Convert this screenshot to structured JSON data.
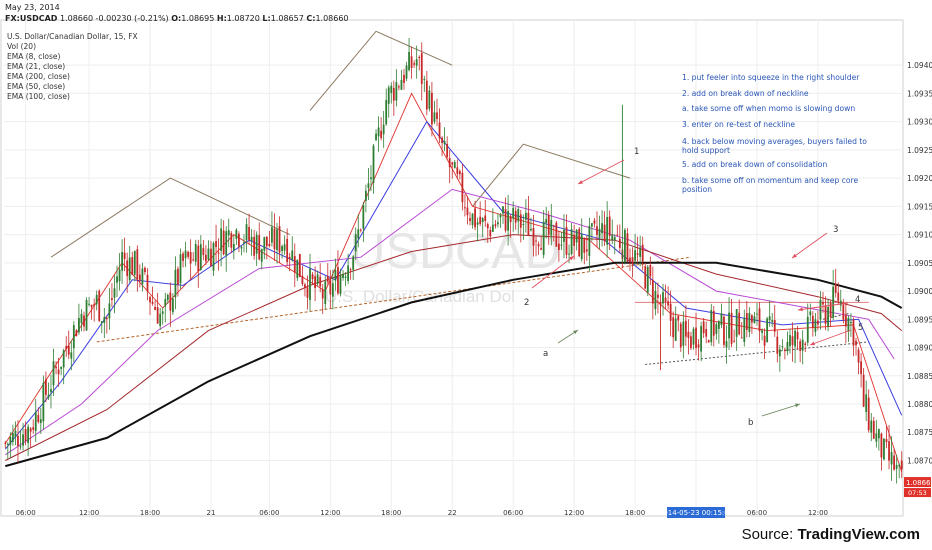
{
  "header": {
    "date": "May 23, 2014",
    "symbol": "FX:USDCAD",
    "last": "1.08660",
    "change": "-0.00230 (-0.21%)",
    "open_label": "O:",
    "open": "1.08695",
    "high_label": "H:",
    "high": "1.08720",
    "low_label": "L:",
    "low": "1.08657",
    "close_label": "C:",
    "close": "1.08660"
  },
  "legend": [
    "U.S. Dollar/Canadian Dollar, 15, FX",
    "Vol (20)",
    "EMA (8, close)",
    "EMA (21, close)",
    "EMA (200, close)",
    "EMA (50, close)",
    "EMA (100, close)"
  ],
  "watermark": {
    "symbol": "USDCAD",
    "name": "U.S. Dollar/Canadian Dol"
  },
  "notes": [
    "1. put feeler into squeeze in the right shoulder",
    "2. add on break down of neckline",
    "a. take some off when momo is slowing down",
    "3. enter on re-test of neckline",
    "4. back below moving averages, buyers failed to hold support",
    "5. add on break down of consolidation",
    "b. take some off on momentum and keep core position"
  ],
  "annotations": [
    "1",
    "2",
    "a",
    "3",
    "4",
    "5",
    "b"
  ],
  "source": {
    "prefix": "Source: ",
    "name": "TradingView.com"
  },
  "colors": {
    "up": "#2e7d32",
    "down": "#c62828",
    "ema8": "#e0312b",
    "ema21": "#3b3fe0",
    "ema50": "#b94ad4",
    "ema100": "#a3282c",
    "ema200": "#111111",
    "shoulder": "#8c7a60",
    "neckline": "#b5652a",
    "annot": "#e05060",
    "annot_dark": "#6e8a60",
    "note": "#2a56b5"
  },
  "chart_data": {
    "type": "candlestick",
    "title": "U.S. Dollar/Canadian Dollar, 15, FX",
    "interval": "15",
    "ylim": [
      1.0863,
      1.0948
    ],
    "y_ticks": [
      "1.09400",
      "1.09350",
      "1.09300",
      "1.09250",
      "1.09200",
      "1.09150",
      "1.09100",
      "1.09050",
      "1.09000",
      "1.08950",
      "1.08900",
      "1.08850",
      "1.08800",
      "1.08750",
      "1.08700"
    ],
    "x_ticks": [
      "06:00",
      "12:00",
      "18:00",
      "21",
      "06:00",
      "12:00",
      "18:00",
      "22",
      "06:00",
      "12:00",
      "18:00",
      "2014-05-23 00:15:00",
      "06:00",
      "12:00"
    ],
    "current_price": "1.08660",
    "countdown": "07:53",
    "price_path": [
      [
        0,
        1.0873
      ],
      [
        10,
        1.0876
      ],
      [
        22,
        1.0888
      ],
      [
        30,
        1.0896
      ],
      [
        36,
        1.0898
      ],
      [
        40,
        1.0895
      ],
      [
        46,
        1.0906
      ],
      [
        52,
        1.0904
      ],
      [
        58,
        1.0898
      ],
      [
        62,
        1.0895
      ],
      [
        70,
        1.0905
      ],
      [
        80,
        1.0907
      ],
      [
        90,
        1.0911
      ],
      [
        100,
        1.0908
      ],
      [
        110,
        1.0909
      ],
      [
        118,
        1.0902
      ],
      [
        126,
        1.0899
      ],
      [
        132,
        1.0903
      ],
      [
        138,
        1.0908
      ],
      [
        146,
        1.0925
      ],
      [
        150,
        1.0934
      ],
      [
        156,
        1.0938
      ],
      [
        162,
        1.0941
      ],
      [
        166,
        1.0935
      ],
      [
        172,
        1.0925
      ],
      [
        178,
        1.0919
      ],
      [
        184,
        1.0913
      ],
      [
        190,
        1.0911
      ],
      [
        196,
        1.0913
      ],
      [
        204,
        1.0912
      ],
      [
        212,
        1.091
      ],
      [
        220,
        1.0909
      ],
      [
        228,
        1.0908
      ],
      [
        236,
        1.0911
      ],
      [
        242,
        1.0909
      ],
      [
        250,
        1.0905
      ],
      [
        256,
        1.0899
      ],
      [
        262,
        1.0895
      ],
      [
        268,
        1.0891
      ],
      [
        276,
        1.0894
      ],
      [
        284,
        1.0893
      ],
      [
        292,
        1.0895
      ],
      [
        300,
        1.0893
      ],
      [
        308,
        1.089
      ],
      [
        316,
        1.0893
      ],
      [
        322,
        1.0896
      ],
      [
        328,
        1.0899
      ],
      [
        334,
        1.0893
      ],
      [
        338,
        1.088
      ],
      [
        342,
        1.0875
      ],
      [
        346,
        1.0871
      ],
      [
        350,
        1.0869
      ],
      [
        353,
        1.0866
      ]
    ],
    "series": [
      {
        "name": "EMA (8, close)",
        "values": [
          [
            0,
            1.0873
          ],
          [
            20,
            1.0887
          ],
          [
            46,
            1.0905
          ],
          [
            62,
            1.0897
          ],
          [
            90,
            1.091
          ],
          [
            126,
            1.09
          ],
          [
            160,
            1.0935
          ],
          [
            184,
            1.0915
          ],
          [
            230,
            1.0909
          ],
          [
            262,
            1.0896
          ],
          [
            300,
            1.0893
          ],
          [
            334,
            1.0894
          ],
          [
            353,
            1.0868
          ]
        ]
      },
      {
        "name": "EMA (21, close)",
        "values": [
          [
            0,
            1.0872
          ],
          [
            22,
            1.0884
          ],
          [
            50,
            1.0902
          ],
          [
            70,
            1.0901
          ],
          [
            96,
            1.0909
          ],
          [
            130,
            1.0902
          ],
          [
            166,
            1.093
          ],
          [
            196,
            1.0914
          ],
          [
            236,
            1.0909
          ],
          [
            268,
            1.0897
          ],
          [
            306,
            1.0894
          ],
          [
            336,
            1.0895
          ],
          [
            353,
            1.0878
          ]
        ]
      },
      {
        "name": "EMA (50, close)",
        "values": [
          [
            0,
            1.0871
          ],
          [
            30,
            1.088
          ],
          [
            60,
            1.0893
          ],
          [
            100,
            1.0904
          ],
          [
            140,
            1.0906
          ],
          [
            176,
            1.0918
          ],
          [
            210,
            1.0914
          ],
          [
            246,
            1.0909
          ],
          [
            280,
            1.09
          ],
          [
            316,
            1.0897
          ],
          [
            340,
            1.0895
          ],
          [
            350,
            1.0888
          ]
        ]
      },
      {
        "name": "EMA (100, close)",
        "values": [
          [
            0,
            1.087
          ],
          [
            40,
            1.0879
          ],
          [
            80,
            1.0893
          ],
          [
            120,
            1.0901
          ],
          [
            160,
            1.0907
          ],
          [
            200,
            1.091
          ],
          [
            240,
            1.0909
          ],
          [
            280,
            1.0903
          ],
          [
            320,
            1.0899
          ],
          [
            345,
            1.0896
          ],
          [
            353,
            1.0893
          ]
        ]
      },
      {
        "name": "EMA (200, close)",
        "values": [
          [
            0,
            1.0869
          ],
          [
            40,
            1.0874
          ],
          [
            80,
            1.0884
          ],
          [
            120,
            1.0892
          ],
          [
            160,
            1.0898
          ],
          [
            200,
            1.0902
          ],
          [
            240,
            1.0905
          ],
          [
            280,
            1.0905
          ],
          [
            320,
            1.0902
          ],
          [
            345,
            1.0899
          ],
          [
            353,
            1.0897
          ]
        ]
      }
    ]
  }
}
